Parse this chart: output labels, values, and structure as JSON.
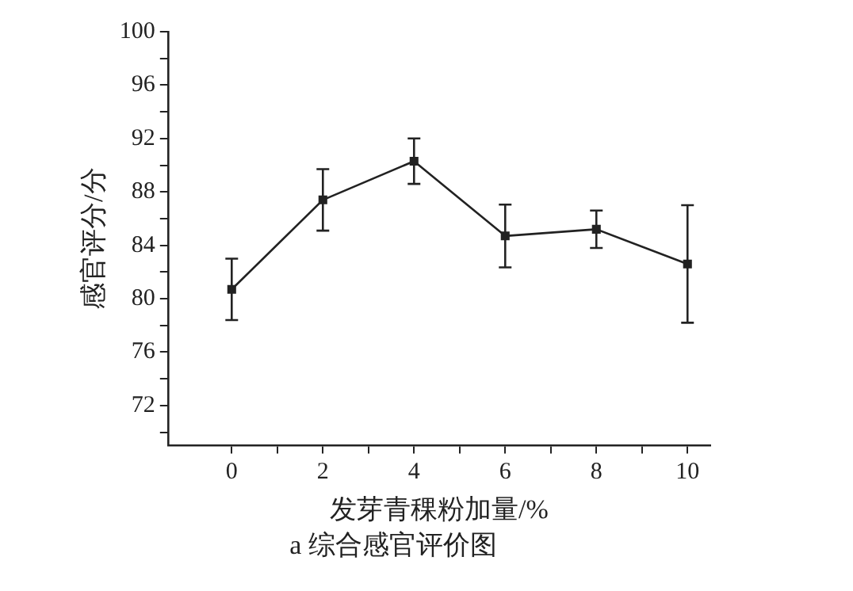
{
  "chart_data": {
    "type": "line",
    "title": "a 综合感官评价图",
    "xlabel": "发芽青稞粉加量/%",
    "ylabel": "感官评分/分",
    "x": [
      0,
      2,
      4,
      6,
      8,
      10
    ],
    "series": [
      {
        "color": "#222222",
        "values": [
          80.7,
          87.4,
          90.3,
          84.7,
          85.2,
          82.6
        ],
        "errors": [
          2.3,
          2.3,
          1.7,
          2.35,
          1.4,
          4.4
        ]
      }
    ],
    "xlim": [
      -1.4,
      10.5
    ],
    "xticks": [
      0,
      {
        "value": 1,
        "label": null
      },
      2,
      {
        "value": 3,
        "label": null
      },
      4,
      {
        "value": 5,
        "label": null
      },
      6,
      {
        "value": 7,
        "label": null
      },
      8,
      {
        "value": 9,
        "label": null
      },
      10
    ],
    "ylim": [
      69,
      100
    ],
    "yticks": [
      {
        "value": 70,
        "label": null
      },
      72,
      {
        "value": 74,
        "label": null
      },
      76,
      {
        "value": 78,
        "label": null
      },
      80,
      {
        "value": 82,
        "label": null
      },
      84,
      {
        "value": 86,
        "label": null
      },
      88,
      {
        "value": 90,
        "label": null
      },
      92,
      {
        "value": 94,
        "label": null
      },
      96,
      {
        "value": 98,
        "label": null
      },
      100
    ],
    "grid": false,
    "legend": false,
    "marker": "square",
    "line_style": "solid"
  }
}
